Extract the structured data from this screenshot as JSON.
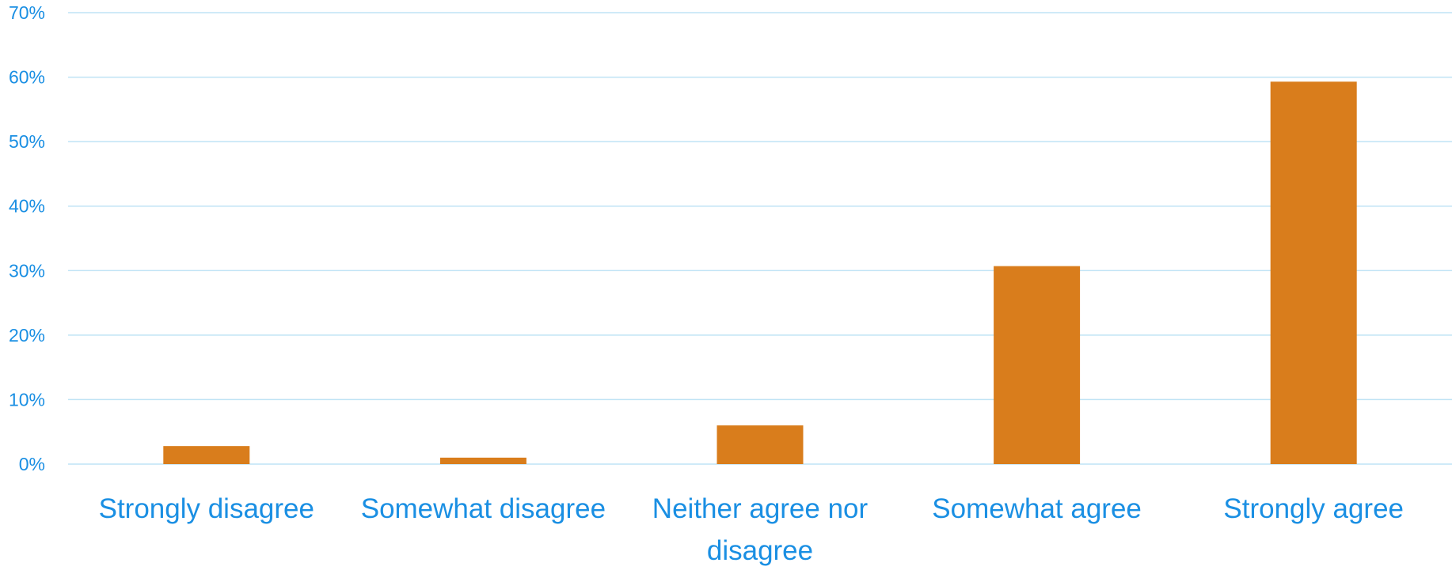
{
  "colors": {
    "bar": "#D97D1C",
    "text": "#1A8FE3",
    "grid": "#BFE3F5"
  },
  "chart_data": {
    "type": "bar",
    "title": "",
    "xlabel": "",
    "ylabel": "",
    "categories": [
      [
        "Strongly disagree"
      ],
      [
        "Somewhat disagree"
      ],
      [
        "Neither agree nor",
        "disagree"
      ],
      [
        "Somewhat agree"
      ],
      [
        "Strongly agree"
      ]
    ],
    "values": [
      2.8,
      1.0,
      6.0,
      30.7,
      59.3
    ],
    "ylim": [
      0,
      70
    ],
    "yticks": [
      0,
      10,
      20,
      30,
      40,
      50,
      60,
      70
    ],
    "ytick_labels": [
      "0%",
      "10%",
      "20%",
      "30%",
      "40%",
      "50%",
      "60%",
      "70%"
    ],
    "value_unit": "%",
    "grid": true,
    "legend": "none"
  }
}
